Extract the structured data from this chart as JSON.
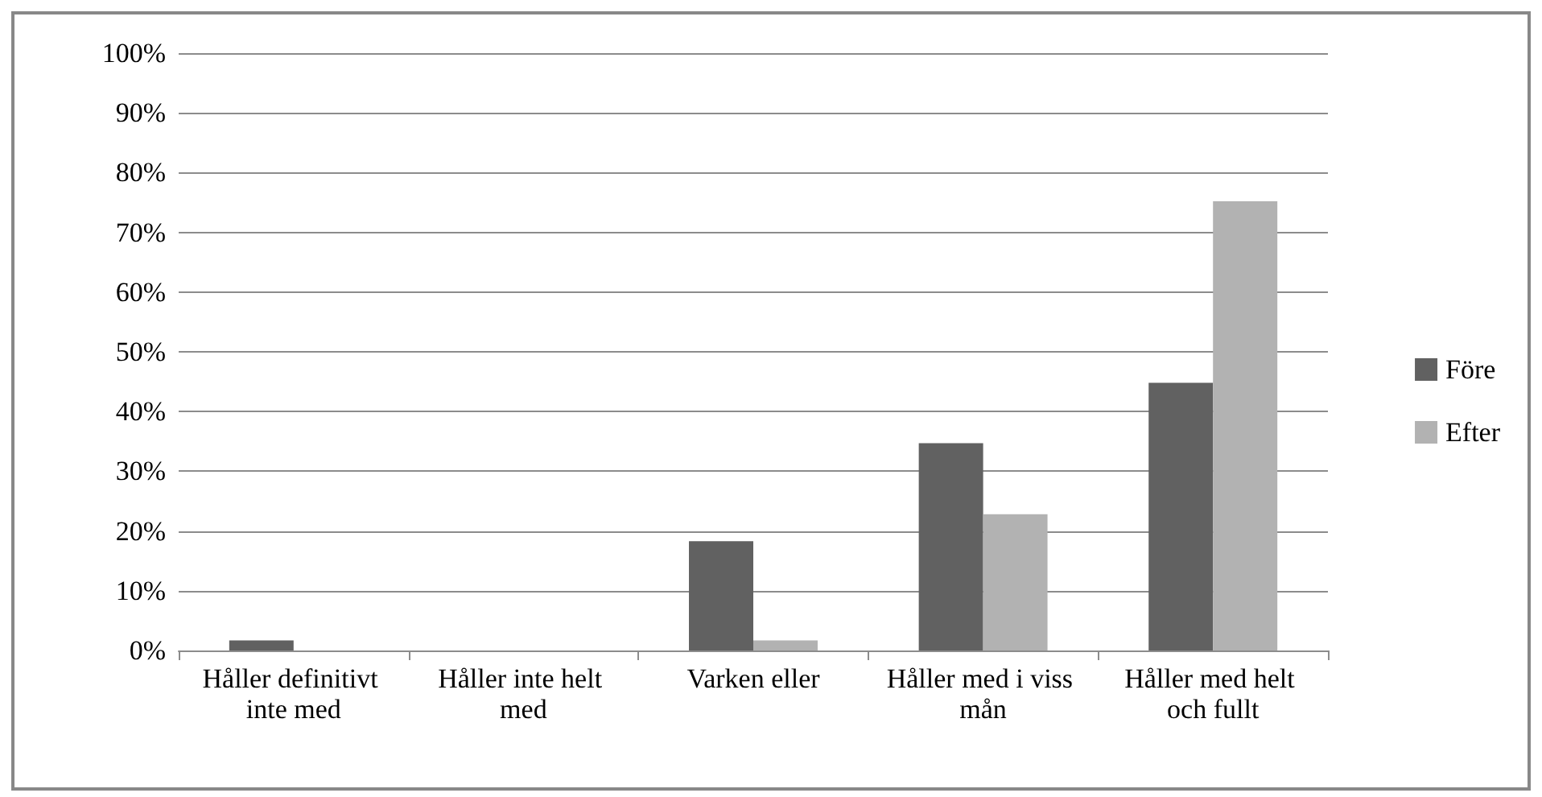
{
  "chart_data": {
    "type": "bar",
    "categories": [
      "Håller definitivt inte med",
      "Håller inte helt med",
      "Varken eller",
      "Håller med i viss mån",
      "Håller med helt och fullt"
    ],
    "series": [
      {
        "name": "Före",
        "color": "#616161",
        "values": [
          1.7,
          0,
          18.3,
          34.7,
          44.8
        ]
      },
      {
        "name": "Efter",
        "color": "#b2b2b2",
        "values": [
          0,
          0,
          1.7,
          22.8,
          75.2
        ]
      }
    ],
    "ylim": [
      0,
      100
    ],
    "yticks": [
      {
        "value": 0,
        "label": "0%"
      },
      {
        "value": 10,
        "label": "10%"
      },
      {
        "value": 20,
        "label": "20%"
      },
      {
        "value": 30,
        "label": "30%"
      },
      {
        "value": 40,
        "label": "40%"
      },
      {
        "value": 50,
        "label": "50%"
      },
      {
        "value": 60,
        "label": "60%"
      },
      {
        "value": 70,
        "label": "70%"
      },
      {
        "value": 80,
        "label": "80%"
      },
      {
        "value": 90,
        "label": "90%"
      },
      {
        "value": 100,
        "label": "100%"
      }
    ],
    "grid": "y",
    "legend": "right"
  }
}
